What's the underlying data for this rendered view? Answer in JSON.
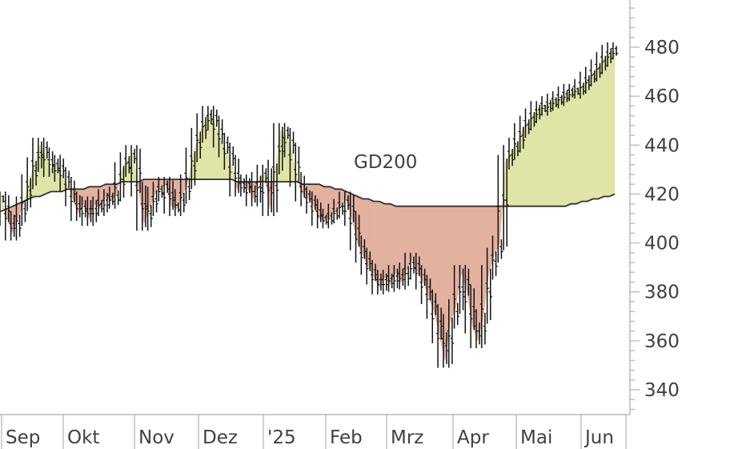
{
  "chart_data": {
    "type": "area",
    "title": "",
    "xlabel": "",
    "ylabel": "",
    "ylim": [
      332,
      498
    ],
    "y_ticks": [
      340,
      360,
      380,
      400,
      420,
      440,
      460,
      480
    ],
    "x_ticks": [
      "Sep",
      "Okt",
      "Nov",
      "Dez",
      "'25",
      "Feb",
      "Mrz",
      "Apr",
      "Mai",
      "Jun"
    ],
    "annotation": "GD200",
    "colors": {
      "above": "#dfe5a6",
      "below": "#e3b1a0",
      "line": "#303030",
      "bars": "#111111",
      "axis": "#b8b8b8"
    },
    "series": [
      {
        "name": "",
        "values": [
          418,
          410,
          404,
          410,
          416,
          425,
          432,
          440,
          436,
          430,
          433,
          428,
          424,
          418,
          412,
          416,
          410,
          416,
          414,
          419,
          417,
          420,
          430,
          434,
          437,
          422,
          408,
          414,
          420,
          422,
          424,
          415,
          414,
          419,
          425,
          436,
          444,
          450,
          453,
          449,
          442,
          438,
          433,
          422,
          425,
          422,
          418,
          426,
          429,
          414,
          431,
          446,
          444,
          438,
          426,
          420,
          418,
          415,
          410,
          409,
          411,
          413,
          415,
          418,
          410,
          400,
          395,
          390,
          386,
          382,
          386,
          383,
          388,
          384,
          389,
          393,
          388,
          384,
          378,
          372,
          362,
          352,
          368,
          374,
          388,
          380,
          366,
          360,
          370,
          388,
          395,
          400,
          433,
          437,
          440,
          446,
          449,
          452,
          455,
          455,
          457,
          458,
          459,
          461,
          462,
          462,
          464,
          467,
          469,
          472,
          475,
          478,
          479
        ]
      },
      {
        "name": "GD200",
        "values": [
          413,
          414,
          415,
          416,
          417,
          418,
          419,
          419,
          420,
          421,
          421,
          421,
          422,
          422,
          422,
          422,
          423,
          423,
          423,
          424,
          424,
          424,
          425,
          425,
          425,
          425,
          426,
          426,
          426,
          426,
          426,
          426,
          426,
          426,
          426,
          426,
          426,
          426,
          426,
          426,
          426,
          426,
          426,
          425,
          425,
          425,
          425,
          425,
          425,
          425,
          425,
          425,
          425,
          425,
          425,
          424,
          424,
          424,
          424,
          423,
          423,
          422,
          422,
          421,
          420,
          419,
          418,
          418,
          417,
          417,
          416,
          416,
          415,
          415,
          415,
          415,
          415,
          415,
          415,
          415,
          415,
          415,
          415,
          415,
          415,
          415,
          415,
          415,
          415,
          415,
          415,
          415,
          415,
          415,
          415,
          415,
          415,
          415,
          415,
          415,
          415,
          415,
          415,
          415,
          416,
          416,
          417,
          417,
          418,
          418,
          419,
          419,
          420
        ]
      }
    ]
  }
}
